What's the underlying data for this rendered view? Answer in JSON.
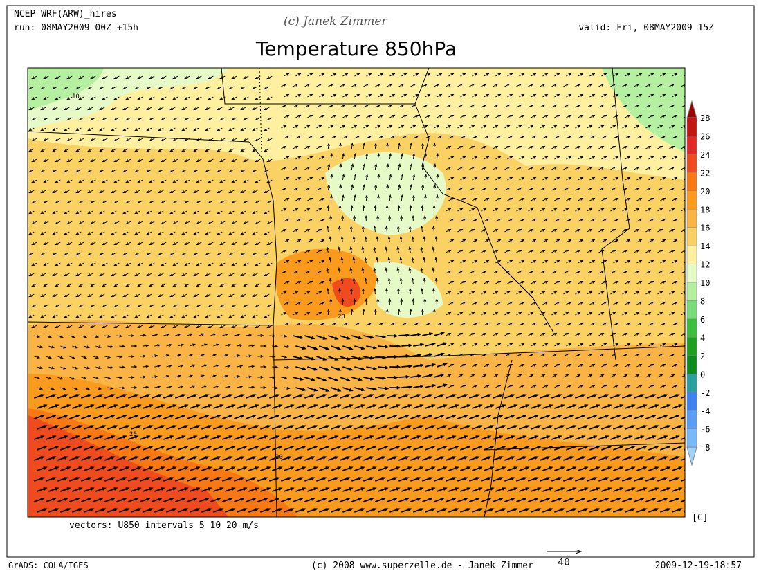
{
  "header": {
    "model": "NCEP WRF(ARW)_hires",
    "run": "run: 08MAY2009 00Z +15h",
    "copyright": "(c) Janek Zimmer",
    "valid": "valid: Fri, 08MAY2009 15Z"
  },
  "title": "Temperature 850hPa",
  "colorbar": {
    "labels": [
      28,
      26,
      24,
      22,
      20,
      18,
      16,
      14,
      12,
      10,
      8,
      6,
      4,
      2,
      0,
      -2,
      -4,
      -6,
      -8
    ],
    "colors": [
      "#a00000",
      "#c31414",
      "#e12828",
      "#f04b1e",
      "#f87814",
      "#fa9b1e",
      "#fab446",
      "#fad264",
      "#fff0a0",
      "#e6fac8",
      "#b4f0a0",
      "#78dc78",
      "#3cbe3c",
      "#1ea01e",
      "#0a8c1e",
      "#28a0a0",
      "#3c82f0",
      "#5a9ff5",
      "#78b9fa",
      "#a0d2fa"
    ],
    "unit": "[C]"
  },
  "map": {
    "contour_labels": [
      "10",
      "20",
      "20",
      "20"
    ]
  },
  "footer": {
    "vectors": "vectors: U850 intervals 5 10 20 m/s",
    "grads": "GrADS: COLA/IGES",
    "site": "(c) 2008 www.superzelle.de - Janek Zimmer",
    "ref_vector": "40",
    "timestamp": "2009-12-19-18:57"
  }
}
